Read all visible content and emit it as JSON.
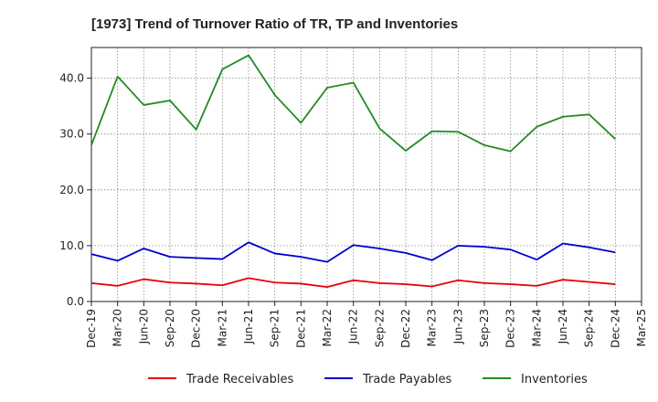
{
  "chart_data": {
    "type": "line",
    "title": "[1973]  Trend of Turnover Ratio of TR, TP and Inventories",
    "xlabel": "",
    "ylabel": "",
    "x": [
      "Dec-19",
      "Mar-20",
      "Jun-20",
      "Sep-20",
      "Dec-20",
      "Mar-21",
      "Jun-21",
      "Sep-21",
      "Dec-21",
      "Mar-22",
      "Jun-22",
      "Sep-22",
      "Dec-22",
      "Mar-23",
      "Jun-23",
      "Sep-23",
      "Dec-23",
      "Mar-24",
      "Jun-24",
      "Sep-24",
      "Dec-24",
      "Mar-25"
    ],
    "x_ticks": [
      "Dec-19",
      "Mar-20",
      "Jun-20",
      "Sep-20",
      "Dec-20",
      "Mar-21",
      "Jun-21",
      "Sep-21",
      "Dec-21",
      "Mar-22",
      "Jun-22",
      "Sep-22",
      "Dec-22",
      "Mar-23",
      "Jun-23",
      "Sep-23",
      "Dec-23",
      "Mar-24",
      "Jun-24",
      "Sep-24",
      "Dec-24",
      "Mar-25"
    ],
    "y_ticks": [
      "0.0",
      "10.0",
      "20.0",
      "30.0",
      "40.0"
    ],
    "ylim": [
      0,
      45.5
    ],
    "grid": true,
    "legend_position": "bottom",
    "series": [
      {
        "name": "Trade Receivables",
        "color": "#e8000b",
        "values": [
          3.3,
          2.8,
          4.0,
          3.4,
          3.2,
          2.9,
          4.2,
          3.4,
          3.2,
          2.6,
          3.8,
          3.3,
          3.1,
          2.7,
          3.8,
          3.3,
          3.1,
          2.8,
          3.9,
          3.5,
          3.1,
          null
        ]
      },
      {
        "name": "Trade Payables",
        "color": "#0000cc",
        "values": [
          8.5,
          7.3,
          9.5,
          8.0,
          7.8,
          7.6,
          10.6,
          8.6,
          8.0,
          7.1,
          10.1,
          9.5,
          8.7,
          7.4,
          10.0,
          9.8,
          9.3,
          7.5,
          10.4,
          9.7,
          8.8,
          null
        ]
      },
      {
        "name": "Inventories",
        "color": "#228b22",
        "values": [
          28.0,
          40.3,
          35.2,
          36.0,
          30.8,
          41.6,
          44.1,
          37.0,
          32.0,
          38.3,
          39.2,
          31.0,
          27.0,
          30.5,
          30.4,
          28.0,
          26.9,
          31.3,
          33.1,
          33.5,
          29.1,
          null
        ]
      }
    ]
  }
}
